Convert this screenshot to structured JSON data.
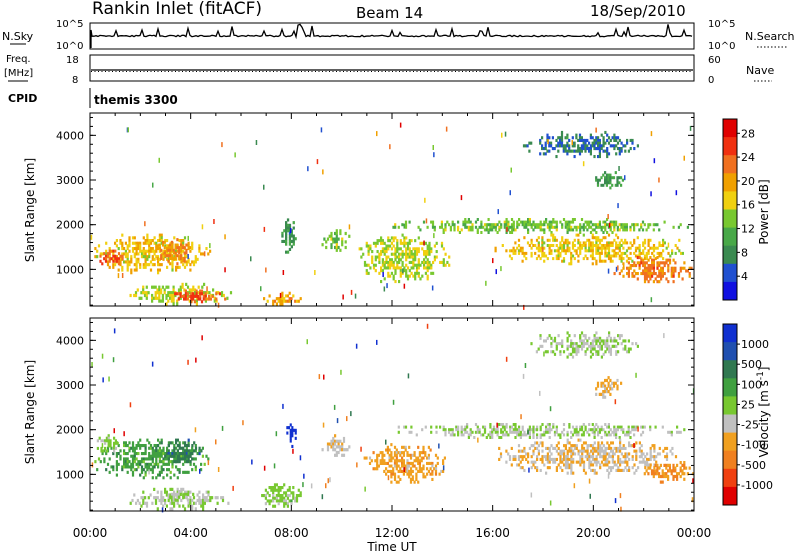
{
  "header": {
    "station": "Rankin Inlet (fitACF)",
    "beam": "Beam 14",
    "date": "18/Sep/2010"
  },
  "status_panels": {
    "nsky_label": "N.Sky",
    "nsky_top": "10^5",
    "nsky_bottom": "10^0",
    "nsearch_label": "N.Search",
    "nsearch_top": "10^5",
    "nsearch_bottom": "10^0",
    "freq_label_1": "Freq.",
    "freq_label_2": "[MHz]",
    "freq_top": "18",
    "freq_bottom": "8",
    "nave_label": "Nave",
    "nave_top": "60",
    "nave_bottom": "0",
    "cpid_label": "CPID",
    "cpid_value": "themis 3300"
  },
  "colors": {
    "trace": "#000000",
    "power_scale": [
      "#1010e0",
      "#2050d0",
      "#3a8a50",
      "#48a848",
      "#78c830",
      "#f0d010",
      "#f0a000",
      "#f07020",
      "#f03010",
      "#e00000"
    ],
    "velocity_scale": [
      "#1030d0",
      "#2050b0",
      "#307850",
      "#40a040",
      "#78c830",
      "#c0c0c0",
      "#f0a020",
      "#f08020",
      "#f04010",
      "#e00000"
    ]
  },
  "chart_data": [
    {
      "type": "heatmap",
      "quantity": "power",
      "ylabel": "Slant Range [km]",
      "xlabel": "",
      "x_ticks": [
        "00:00",
        "04:00",
        "08:00",
        "12:00",
        "16:00",
        "20:00",
        "00:00"
      ],
      "xlim_hours": [
        0,
        24
      ],
      "y_ticks": [
        1000,
        2000,
        3000,
        4000
      ],
      "ylim_km": [
        180,
        4500
      ],
      "colorbar_label": "Power [dB]",
      "colorbar_ticks": [
        "4",
        "8",
        "12",
        "16",
        "20",
        "24",
        "28"
      ],
      "regions": [
        {
          "t0": 0.1,
          "t1": 4.8,
          "r0": 900,
          "r1": 1800,
          "value": 18
        },
        {
          "t0": 0.3,
          "t1": 1.4,
          "r0": 1100,
          "r1": 1500,
          "value": 24
        },
        {
          "t0": 2.5,
          "t1": 4.0,
          "r0": 1100,
          "r1": 1700,
          "value": 22
        },
        {
          "t0": 1.5,
          "t1": 5.7,
          "r0": 200,
          "r1": 700,
          "value": 16
        },
        {
          "t0": 3.2,
          "t1": 5.4,
          "r0": 250,
          "r1": 550,
          "value": 24
        },
        {
          "t0": 6.8,
          "t1": 8.4,
          "r0": 200,
          "r1": 500,
          "value": 20
        },
        {
          "t0": 7.6,
          "t1": 8.2,
          "r0": 1300,
          "r1": 2200,
          "value": 10
        },
        {
          "t0": 9.2,
          "t1": 10.4,
          "r0": 1400,
          "r1": 1900,
          "value": 14
        },
        {
          "t0": 10.6,
          "t1": 14.3,
          "r0": 700,
          "r1": 1800,
          "value": 16
        },
        {
          "t0": 11.8,
          "t1": 24.0,
          "r0": 1800,
          "r1": 2150,
          "value": 14
        },
        {
          "t0": 16.0,
          "t1": 23.8,
          "r0": 1100,
          "r1": 1800,
          "value": 18
        },
        {
          "t0": 20.8,
          "t1": 24.0,
          "r0": 700,
          "r1": 1300,
          "value": 22
        },
        {
          "t0": 17.2,
          "t1": 21.8,
          "r0": 3500,
          "r1": 4100,
          "value": 8
        },
        {
          "t0": 20.0,
          "t1": 21.2,
          "r0": 2800,
          "r1": 3200,
          "value": 10
        }
      ]
    },
    {
      "type": "heatmap",
      "quantity": "velocity",
      "ylabel": "Slant Range [km]",
      "xlabel": "Time UT",
      "x_ticks": [
        "00:00",
        "04:00",
        "08:00",
        "12:00",
        "16:00",
        "20:00",
        "00:00"
      ],
      "xlim_hours": [
        0,
        24
      ],
      "y_ticks": [
        1000,
        2000,
        3000,
        4000
      ],
      "ylim_km": [
        180,
        4500
      ],
      "colorbar_label": "Velocity [m s^-1]",
      "colorbar_ticks": [
        "1000",
        "500",
        "100",
        "25",
        "-25",
        "-100",
        "-500",
        "-1000"
      ],
      "regions": [
        {
          "t0": 0.1,
          "t1": 4.8,
          "r0": 900,
          "r1": 1800,
          "value": 300
        },
        {
          "t0": 0.2,
          "t1": 1.2,
          "r0": 1500,
          "r1": 1900,
          "value": 60
        },
        {
          "t0": 2.8,
          "t1": 4.6,
          "r0": 1200,
          "r1": 1800,
          "value": 500
        },
        {
          "t0": 1.5,
          "t1": 5.6,
          "r0": 200,
          "r1": 700,
          "value": 0
        },
        {
          "t0": 3.0,
          "t1": 4.2,
          "r0": 400,
          "r1": 650,
          "value": 0
        },
        {
          "t0": 6.8,
          "t1": 8.4,
          "r0": 200,
          "r1": 800,
          "value": 80
        },
        {
          "t0": 7.8,
          "t1": 8.2,
          "r0": 1600,
          "r1": 2200,
          "value": 900
        },
        {
          "t0": 9.2,
          "t1": 10.4,
          "r0": 1400,
          "r1": 1900,
          "value": -150
        },
        {
          "t0": 10.8,
          "t1": 14.2,
          "r0": 800,
          "r1": 1700,
          "value": -300
        },
        {
          "t0": 11.8,
          "t1": 24.0,
          "r0": 1800,
          "r1": 2150,
          "value": 0
        },
        {
          "t0": 16.0,
          "t1": 23.6,
          "r0": 1000,
          "r1": 1800,
          "value": -200
        },
        {
          "t0": 22.0,
          "t1": 24.0,
          "r0": 800,
          "r1": 1300,
          "value": -400
        },
        {
          "t0": 17.5,
          "t1": 21.8,
          "r0": 3600,
          "r1": 4200,
          "value": 0
        },
        {
          "t0": 20.0,
          "t1": 21.2,
          "r0": 2700,
          "r1": 3200,
          "value": -250
        }
      ]
    }
  ]
}
